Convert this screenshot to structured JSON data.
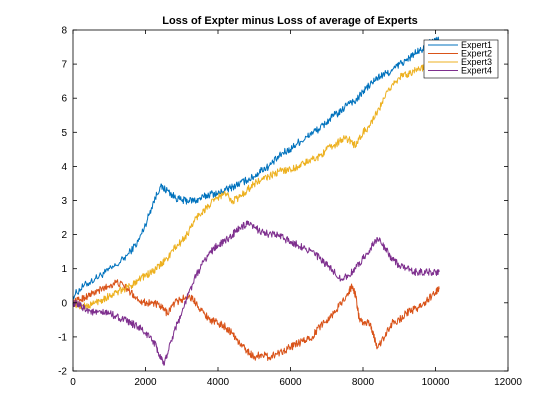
{
  "chart_data": {
    "type": "line",
    "title": "Loss of Expter minus Loss of average of Experts",
    "xlabel": "",
    "ylabel": "",
    "xlim": [
      0,
      12000
    ],
    "ylim": [
      -2,
      8
    ],
    "xticks": [
      0,
      2000,
      4000,
      6000,
      8000,
      10000,
      12000
    ],
    "yticks": [
      -2,
      -1,
      0,
      1,
      2,
      3,
      4,
      5,
      6,
      7,
      8
    ],
    "grid": false,
    "legend_position": "top-right",
    "series": [
      {
        "name": "Expert1",
        "color": "#0072BD",
        "points": [
          [
            0,
            0.2
          ],
          [
            300,
            0.5
          ],
          [
            600,
            0.7
          ],
          [
            900,
            0.9
          ],
          [
            1200,
            1.1
          ],
          [
            1500,
            1.4
          ],
          [
            1800,
            1.8
          ],
          [
            2000,
            2.3
          ],
          [
            2200,
            2.9
          ],
          [
            2400,
            3.4
          ],
          [
            2600,
            3.3
          ],
          [
            2800,
            3.1
          ],
          [
            3000,
            3.0
          ],
          [
            3200,
            3.0
          ],
          [
            3400,
            3.0
          ],
          [
            3600,
            3.1
          ],
          [
            3800,
            3.2
          ],
          [
            4000,
            3.2
          ],
          [
            4200,
            3.3
          ],
          [
            4400,
            3.4
          ],
          [
            4600,
            3.5
          ],
          [
            4800,
            3.6
          ],
          [
            5000,
            3.7
          ],
          [
            5200,
            3.9
          ],
          [
            5400,
            4.0
          ],
          [
            5600,
            4.2
          ],
          [
            5800,
            4.4
          ],
          [
            6000,
            4.5
          ],
          [
            6200,
            4.7
          ],
          [
            6400,
            4.8
          ],
          [
            6600,
            5.0
          ],
          [
            6800,
            5.1
          ],
          [
            7000,
            5.3
          ],
          [
            7200,
            5.5
          ],
          [
            7400,
            5.6
          ],
          [
            7600,
            5.9
          ],
          [
            7800,
            5.9
          ],
          [
            8000,
            6.2
          ],
          [
            8200,
            6.4
          ],
          [
            8400,
            6.6
          ],
          [
            8600,
            6.7
          ],
          [
            8800,
            6.8
          ],
          [
            9000,
            7.0
          ],
          [
            9200,
            7.1
          ],
          [
            9400,
            7.3
          ],
          [
            9600,
            7.4
          ],
          [
            9800,
            7.6
          ],
          [
            10000,
            7.7
          ],
          [
            10100,
            7.7
          ]
        ]
      },
      {
        "name": "Expert2",
        "color": "#D95319",
        "points": [
          [
            0,
            0.0
          ],
          [
            200,
            0.1
          ],
          [
            400,
            0.2
          ],
          [
            600,
            0.3
          ],
          [
            800,
            0.4
          ],
          [
            1000,
            0.5
          ],
          [
            1200,
            0.6
          ],
          [
            1400,
            0.5
          ],
          [
            1600,
            0.3
          ],
          [
            1800,
            0.1
          ],
          [
            2000,
            0.0
          ],
          [
            2200,
            0.0
          ],
          [
            2400,
            -0.1
          ],
          [
            2600,
            -0.3
          ],
          [
            2800,
            0.0
          ],
          [
            3000,
            0.1
          ],
          [
            3200,
            0.2
          ],
          [
            3400,
            0.0
          ],
          [
            3600,
            -0.3
          ],
          [
            3800,
            -0.5
          ],
          [
            4000,
            -0.6
          ],
          [
            4200,
            -0.7
          ],
          [
            4400,
            -0.9
          ],
          [
            4600,
            -1.2
          ],
          [
            4800,
            -1.4
          ],
          [
            5000,
            -1.6
          ],
          [
            5200,
            -1.5
          ],
          [
            5400,
            -1.6
          ],
          [
            5600,
            -1.5
          ],
          [
            5800,
            -1.4
          ],
          [
            6000,
            -1.3
          ],
          [
            6200,
            -1.2
          ],
          [
            6400,
            -1.1
          ],
          [
            6600,
            -1.0
          ],
          [
            6800,
            -0.7
          ],
          [
            7000,
            -0.5
          ],
          [
            7200,
            -0.3
          ],
          [
            7400,
            0.0
          ],
          [
            7600,
            0.3
          ],
          [
            7700,
            0.5
          ],
          [
            7800,
            0.2
          ],
          [
            7900,
            -0.5
          ],
          [
            8000,
            -0.6
          ],
          [
            8200,
            -0.6
          ],
          [
            8300,
            -1.0
          ],
          [
            8400,
            -1.3
          ],
          [
            8600,
            -1.0
          ],
          [
            8800,
            -0.6
          ],
          [
            9000,
            -0.5
          ],
          [
            9200,
            -0.3
          ],
          [
            9400,
            -0.2
          ],
          [
            9600,
            -0.1
          ],
          [
            9800,
            0.1
          ],
          [
            10000,
            0.3
          ],
          [
            10100,
            0.4
          ]
        ]
      },
      {
        "name": "Expert3",
        "color": "#EDB120",
        "points": [
          [
            0,
            0.0
          ],
          [
            200,
            -0.1
          ],
          [
            400,
            -0.1
          ],
          [
            600,
            0.0
          ],
          [
            800,
            0.1
          ],
          [
            1000,
            0.2
          ],
          [
            1200,
            0.3
          ],
          [
            1400,
            0.4
          ],
          [
            1600,
            0.5
          ],
          [
            1800,
            0.7
          ],
          [
            2000,
            0.8
          ],
          [
            2200,
            0.9
          ],
          [
            2400,
            1.1
          ],
          [
            2600,
            1.3
          ],
          [
            2800,
            1.6
          ],
          [
            3000,
            1.8
          ],
          [
            3200,
            2.1
          ],
          [
            3400,
            2.5
          ],
          [
            3600,
            2.7
          ],
          [
            3800,
            2.9
          ],
          [
            4000,
            3.1
          ],
          [
            4200,
            3.2
          ],
          [
            4400,
            3.0
          ],
          [
            4600,
            3.1
          ],
          [
            4800,
            3.3
          ],
          [
            5000,
            3.5
          ],
          [
            5200,
            3.6
          ],
          [
            5400,
            3.7
          ],
          [
            5600,
            3.8
          ],
          [
            5800,
            3.9
          ],
          [
            6000,
            3.9
          ],
          [
            6200,
            4.0
          ],
          [
            6400,
            4.1
          ],
          [
            6600,
            4.2
          ],
          [
            6800,
            4.3
          ],
          [
            7000,
            4.5
          ],
          [
            7200,
            4.6
          ],
          [
            7400,
            4.8
          ],
          [
            7600,
            4.8
          ],
          [
            7800,
            4.6
          ],
          [
            8000,
            5.0
          ],
          [
            8200,
            5.2
          ],
          [
            8400,
            5.6
          ],
          [
            8600,
            6.0
          ],
          [
            8800,
            6.4
          ],
          [
            9000,
            6.6
          ],
          [
            9200,
            6.7
          ],
          [
            9400,
            6.8
          ],
          [
            9600,
            6.9
          ],
          [
            9800,
            6.8
          ],
          [
            10000,
            6.8
          ],
          [
            10100,
            6.8
          ]
        ]
      },
      {
        "name": "Expert4",
        "color": "#7E2F8E",
        "points": [
          [
            0,
            0.0
          ],
          [
            200,
            -0.1
          ],
          [
            400,
            -0.2
          ],
          [
            600,
            -0.3
          ],
          [
            800,
            -0.3
          ],
          [
            1000,
            -0.3
          ],
          [
            1200,
            -0.4
          ],
          [
            1400,
            -0.5
          ],
          [
            1600,
            -0.6
          ],
          [
            1800,
            -0.7
          ],
          [
            2000,
            -0.9
          ],
          [
            2200,
            -1.1
          ],
          [
            2300,
            -1.3
          ],
          [
            2400,
            -1.6
          ],
          [
            2500,
            -1.8
          ],
          [
            2600,
            -1.5
          ],
          [
            2800,
            -0.8
          ],
          [
            3000,
            -0.3
          ],
          [
            3200,
            0.3
          ],
          [
            3400,
            0.8
          ],
          [
            3600,
            1.2
          ],
          [
            3800,
            1.5
          ],
          [
            4000,
            1.7
          ],
          [
            4200,
            1.8
          ],
          [
            4400,
            2.0
          ],
          [
            4600,
            2.2
          ],
          [
            4800,
            2.3
          ],
          [
            5000,
            2.2
          ],
          [
            5200,
            2.1
          ],
          [
            5400,
            2.0
          ],
          [
            5600,
            2.0
          ],
          [
            5800,
            1.9
          ],
          [
            6000,
            1.8
          ],
          [
            6200,
            1.7
          ],
          [
            6400,
            1.6
          ],
          [
            6600,
            1.5
          ],
          [
            6800,
            1.3
          ],
          [
            7000,
            1.1
          ],
          [
            7200,
            0.9
          ],
          [
            7400,
            0.7
          ],
          [
            7600,
            0.8
          ],
          [
            7800,
            1.0
          ],
          [
            8000,
            1.3
          ],
          [
            8200,
            1.6
          ],
          [
            8400,
            1.9
          ],
          [
            8600,
            1.6
          ],
          [
            8800,
            1.3
          ],
          [
            9000,
            1.1
          ],
          [
            9200,
            1.0
          ],
          [
            9400,
            0.9
          ],
          [
            9600,
            0.9
          ],
          [
            9800,
            0.9
          ],
          [
            10000,
            0.9
          ],
          [
            10100,
            0.9
          ]
        ]
      }
    ]
  }
}
